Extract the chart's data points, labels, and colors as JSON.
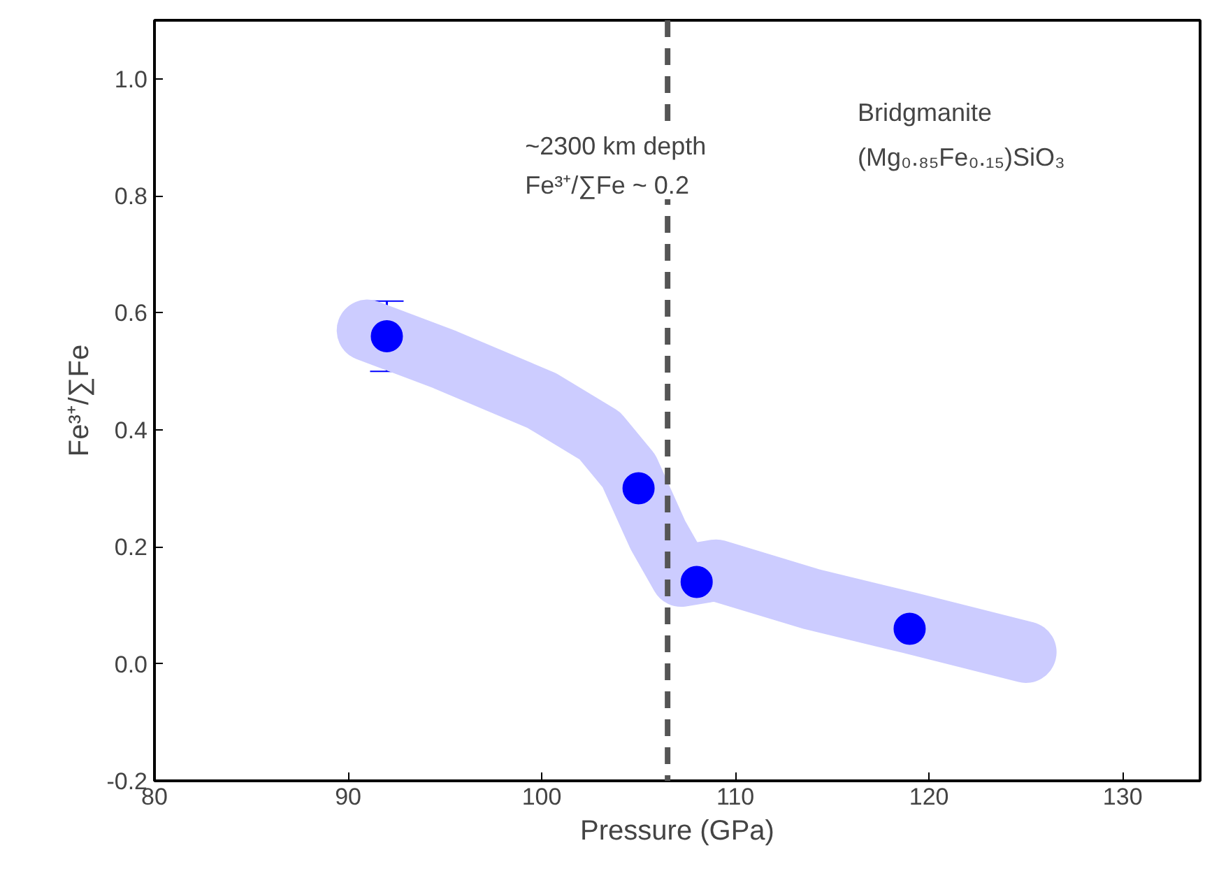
{
  "chart_data": {
    "type": "scatter",
    "xlabel": "Pressure (GPa)",
    "ylabel": "Fe³⁺/∑Fe",
    "series": [
      {
        "type": "line",
        "marker": "none",
        "color": "#ccccff",
        "x": [
          91,
          95,
          100,
          103,
          104.5,
          106,
          107.2,
          109,
          114,
          119,
          125
        ],
        "values": [
          0.57,
          0.52,
          0.45,
          0.39,
          0.33,
          0.22,
          0.15,
          0.16,
          0.11,
          0.07,
          0.02
        ]
      },
      {
        "marker": "circle",
        "color": "#0000ff",
        "x": [
          92,
          105,
          108,
          119
        ],
        "values": [
          0.56,
          0.3,
          0.14,
          0.06
        ],
        "errors": [
          [
            0.5,
            0.62
          ],
          null,
          null,
          [
            0.03,
            0.09
          ]
        ]
      }
    ],
    "xlim": [
      80,
      134
    ],
    "ylim": [
      -0.2,
      1.1
    ],
    "xticks": [
      80,
      90,
      100,
      110,
      120,
      130
    ],
    "yticks": [
      {
        "value": -0.2,
        "label": "-0.2"
      },
      {
        "value": 0,
        "label": "0.0"
      },
      0.2,
      0.4,
      0.6,
      0.8,
      {
        "value": 1,
        "label": "1.0"
      }
    ],
    "ref_lines": [
      {
        "axis": "x",
        "value": 106.5,
        "label": "~2300 km depth\nFe³⁺/∑Fe ~ 0.2",
        "color": "#555555",
        "line_style": "dashed"
      }
    ],
    "annotations": [
      "Bridgmanite\n(Mg₀.₈₅Fe₀.₁₅)SiO₃"
    ],
    "grid": false
  }
}
